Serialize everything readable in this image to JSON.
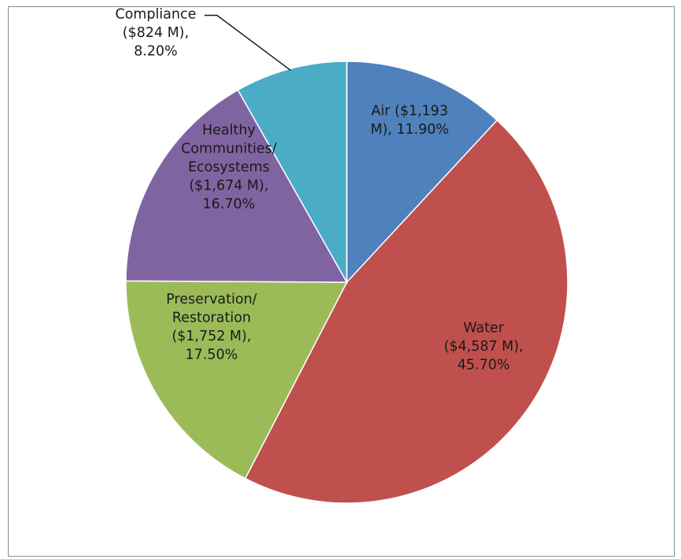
{
  "chart_data": {
    "type": "pie",
    "title": "",
    "slices": [
      {
        "name": "Air",
        "amount": "$1,193 M",
        "value": 11.9,
        "label": [
          "Air ($1,193",
          "M), 11.90%"
        ],
        "color": "#4f81bd"
      },
      {
        "name": "Water",
        "amount": "$4,587 M",
        "value": 45.7,
        "label": [
          "Water",
          "($4,587 M),",
          "45.70%"
        ],
        "color": "#c0504d"
      },
      {
        "name": "Preservation/ Restoration",
        "amount": "$1,752 M",
        "value": 17.5,
        "label": [
          "Preservation/",
          "Restoration",
          "($1,752 M),",
          "17.50%"
        ],
        "color": "#9bbb59"
      },
      {
        "name": "Healthy Communities/ Ecosystems",
        "amount": "$1,674 M",
        "value": 16.7,
        "label": [
          "Healthy",
          "Communities/",
          "Ecosystems",
          "($1,674 M),",
          "16.70%"
        ],
        "color": "#8064a2"
      },
      {
        "name": "Compliance",
        "amount": "$824 M",
        "value": 8.2,
        "label": [
          "Compliance",
          "($824 M),",
          "8.20%"
        ],
        "color": "#4bacc6"
      }
    ],
    "start_angle": "12 o'clock",
    "direction": "clockwise",
    "legend": "none",
    "data_labels": "on"
  }
}
